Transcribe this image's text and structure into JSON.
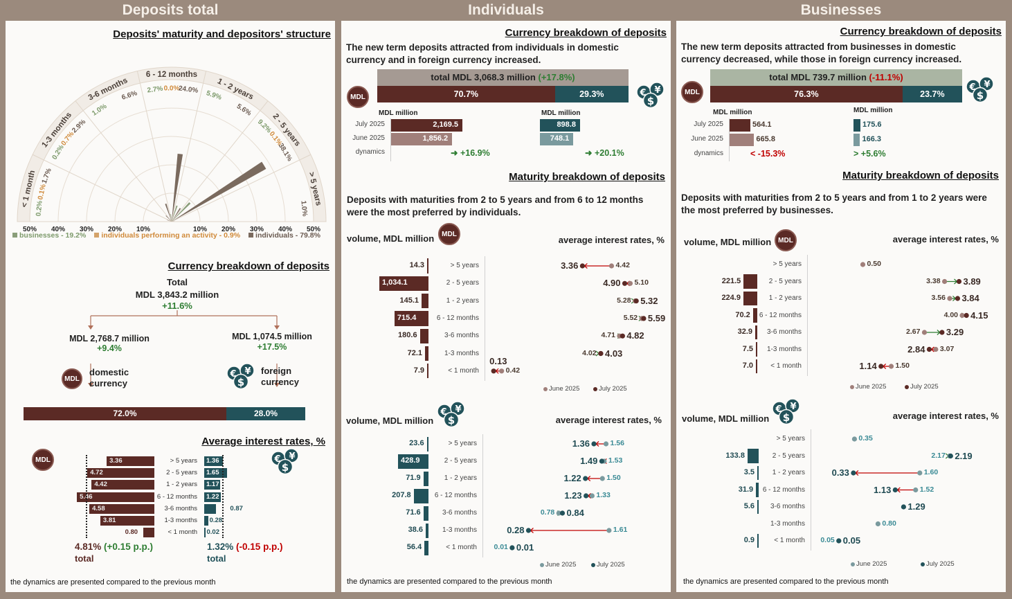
{
  "headers": {
    "total": "Deposits total",
    "individuals": "Individuals",
    "businesses": "Businesses"
  },
  "icons": {
    "mdl": "MDL",
    "mdl_icon": "mdl-coin-icon",
    "foreign_icon": "currency-coins-icon"
  },
  "colors": {
    "page_bg": "#9b8a7d",
    "mdl": "#5b2a25",
    "foreign": "#22525a",
    "mdl_june": "#a07f7a",
    "foreign_june": "#7a9a9e",
    "increase": "#2e7d32",
    "decrease": "#c00000",
    "businesses": "#8a9e7a",
    "individuals_activity": "#d4a36a",
    "individuals": "#7a6a5e"
  },
  "total": {
    "structure_title": "Deposits' maturity and depositors' structure",
    "currency": {
      "title": "Currency breakdown of deposits",
      "total_label": "Total",
      "total_value": "MDL 3,843.2 million",
      "total_change": "+11.6%",
      "domestic": {
        "value": "MDL 2,768.7 million",
        "change": "+9.4%",
        "label": "domestic currency",
        "share": "72.0%"
      },
      "foreign": {
        "value": "MDL 1,074.5 million",
        "change": "+17.5%",
        "label": "foreign currency",
        "share": "28.0%"
      }
    },
    "footnote": "the dynamics are presented compared to the previous month"
  },
  "individuals": {
    "currency": {
      "title": "Currency breakdown of deposits",
      "text": "The new term deposits attracted from individuals in domestic currency and in foreign currency increased.",
      "total_text": "total MDL 3,068.3 million",
      "total_change": "(+17.8%)",
      "mdl_share": "70.7%",
      "foreign_share": "29.3%",
      "unit": "MDL million",
      "rows": [
        "July 2025",
        "June 2025",
        "dynamics"
      ],
      "mdl": {
        "july": 2169.5,
        "june": 1856.2,
        "dynamics": "+16.9%",
        "direction": "up"
      },
      "foreign": {
        "july": 898.8,
        "june": 748.1,
        "dynamics": "+20.1%",
        "direction": "up"
      }
    },
    "maturity": {
      "title": "Maturity breakdown of deposits",
      "text": "Deposits with maturities from 2 to 5 years and from 6 to 12 months were the most preferred by individuals."
    },
    "footnote": "the dynamics are presented compared to the previous month"
  },
  "businesses": {
    "currency": {
      "title": "Currency breakdown of deposits",
      "text": "The new term deposits attracted from businesses in domestic currency decreased, while those in foreign currency increased.",
      "total_text": "total MDL 739.7 million",
      "total_change": "(-11.1%)",
      "mdl_share": "76.3%",
      "foreign_share": "23.7%",
      "unit": "MDL million",
      "rows": [
        "July 2025",
        "June 2025",
        "dynamics"
      ],
      "mdl": {
        "july": 564.1,
        "june": 665.8,
        "dynamics": "-15.3%",
        "direction": "down"
      },
      "foreign": {
        "july": 175.6,
        "june": 166.3,
        "dynamics": "+5.6%",
        "direction": "up"
      }
    },
    "maturity": {
      "title": "Maturity breakdown of deposits",
      "text": "Deposits with maturities from 2 to 5 years and from 1 to 2 years were the most preferred by businesses."
    },
    "footnote": "the dynamics are presented compared to the previous month"
  },
  "chart_data": [
    {
      "type": "bar",
      "layout": "radial half-circle",
      "title": "Deposits' maturity and depositors' structure",
      "categories": [
        "< 1 month",
        "1-3 months",
        "3-6 months",
        "6 - 12 months",
        "1 - 2 years",
        "2 - 5 years",
        "> 5 years"
      ],
      "radial_ticks": [
        "50%",
        "40%",
        "30%",
        "20%",
        "10%",
        "10%",
        "20%",
        "30%",
        "40%",
        "50%"
      ],
      "rlim": [
        0,
        50
      ],
      "grid": true,
      "legend": "bottom",
      "series": [
        {
          "name": "businesses",
          "legend": "businesses - 19.2%",
          "color": "#8a9e7a",
          "values": [
            0.2,
            0.2,
            1.0,
            2.7,
            5.9,
            9.2,
            null
          ]
        },
        {
          "name": "individuals performing an activity",
          "legend": "individuals performing an activity - 0.9%",
          "color": "#d4a36a",
          "values": [
            0.1,
            0.7,
            null,
            0.0,
            null,
            0.1,
            null
          ]
        },
        {
          "name": "individuals",
          "legend": "individuals - 79.8%",
          "color": "#7a6a5e",
          "values": [
            1.7,
            2.9,
            6.6,
            24.0,
            5.6,
            38.1,
            1.0
          ]
        }
      ]
    },
    {
      "type": "bar",
      "title": "Average interest rates, %",
      "categories": [
        "> 5 years",
        "2 - 5 years",
        "1 - 2 years",
        "6 - 12 months",
        "3-6 months",
        "1-3 months",
        "< 1 month"
      ],
      "mdl": {
        "values": [
          3.36,
          4.72,
          4.42,
          5.46,
          4.58,
          3.81,
          0.8
        ],
        "total": 4.81,
        "total_text": "4.81%",
        "change": "(+0.15 p.p.)",
        "total_label": "total"
      },
      "foreign": {
        "values": [
          1.36,
          1.65,
          1.17,
          1.22,
          0.87,
          0.28,
          0.02
        ],
        "total": 1.32,
        "total_text": "1.32%",
        "change": "(-0.15 p.p.)",
        "total_label": "total"
      }
    },
    {
      "type": "bar",
      "volume_label": "volume, MDL million",
      "rates_label": "average interest rates, %",
      "categories": [
        "> 5 years",
        "2 - 5 years",
        "1 - 2 years",
        "6 - 12 months",
        "3-6 months",
        "1-3 months",
        "< 1 month"
      ],
      "volume": [
        14.3,
        1034.1,
        145.1,
        715.4,
        180.6,
        72.1,
        7.9
      ],
      "series": [
        {
          "name": "June 2025",
          "values": [
            4.42,
            5.1,
            5.28,
            5.52,
            4.71,
            4.02,
            0.42
          ]
        },
        {
          "name": "July 2025",
          "values": [
            3.36,
            4.9,
            5.32,
            5.59,
            4.82,
            4.03,
            0.13
          ]
        }
      ]
    },
    {
      "type": "bar",
      "volume_label": "volume, MDL million",
      "rates_label": "average interest rates, %",
      "categories": [
        "> 5 years",
        "2 - 5 years",
        "1 - 2 years",
        "6 - 12 months",
        "3-6 months",
        "1-3 months",
        "< 1 month"
      ],
      "volume": [
        23.6,
        428.9,
        71.9,
        207.8,
        71.6,
        38.6,
        56.4
      ],
      "series": [
        {
          "name": "June 2025",
          "values": [
            1.56,
            1.53,
            1.5,
            1.33,
            0.78,
            1.61,
            0.01
          ]
        },
        {
          "name": "July 2025",
          "values": [
            1.36,
            1.49,
            1.22,
            1.23,
            0.84,
            0.28,
            0.01
          ]
        }
      ]
    },
    {
      "type": "bar",
      "volume_label": "volume, MDL million",
      "rates_label": "average interest rates, %",
      "categories": [
        "> 5 years",
        "2 - 5 years",
        "1 - 2 years",
        "6 - 12 months",
        "3-6 months",
        "1-3 months",
        "< 1 month"
      ],
      "volume": [
        null,
        221.5,
        224.9,
        70.2,
        32.9,
        7.5,
        7.0
      ],
      "series": [
        {
          "name": "June 2025",
          "values": [
            0.5,
            3.38,
            3.56,
            4.0,
            2.67,
            3.07,
            1.5
          ]
        },
        {
          "name": "July 2025",
          "values": [
            null,
            3.89,
            3.84,
            4.15,
            3.29,
            2.84,
            1.14
          ]
        }
      ]
    },
    {
      "type": "bar",
      "volume_label": "volume, MDL million",
      "rates_label": "average interest rates, %",
      "categories": [
        "> 5 years",
        "2 - 5 years",
        "1 - 2 years",
        "6 - 12 months",
        "3-6 months",
        "1-3 months",
        "< 1 month"
      ],
      "volume": [
        null,
        133.8,
        3.5,
        31.9,
        5.6,
        null,
        0.9
      ],
      "series": [
        {
          "name": "June 2025",
          "values": [
            0.35,
            2.17,
            1.6,
            1.52,
            null,
            0.8,
            0.05
          ]
        },
        {
          "name": "July 2025",
          "values": [
            null,
            2.19,
            0.33,
            1.13,
            1.29,
            null,
            0.05
          ]
        }
      ]
    }
  ]
}
